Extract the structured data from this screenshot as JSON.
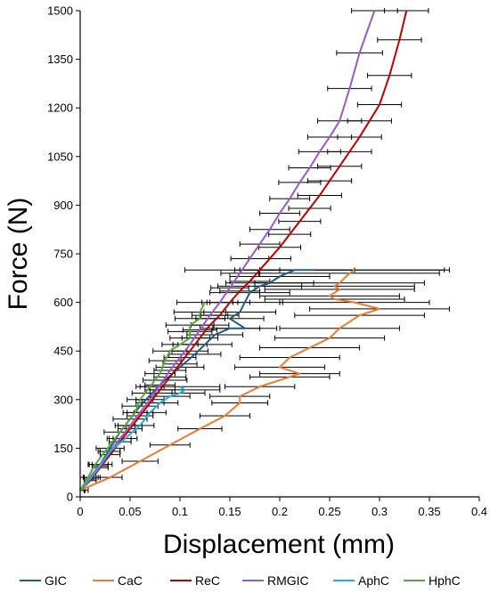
{
  "chart_data": {
    "type": "line",
    "xlabel": "Displacement (mm)",
    "ylabel": "Force (N)",
    "xlim": [
      0,
      0.4
    ],
    "ylim": [
      0,
      1500
    ],
    "xticks": [
      "0",
      "0.05",
      "0.1",
      "0.15",
      "0.2",
      "0.25",
      "0.3",
      "0.35",
      "0.4"
    ],
    "yticks": [
      "0",
      "150",
      "300",
      "450",
      "600",
      "750",
      "900",
      "1050",
      "1200",
      "1350",
      "1500"
    ],
    "grid": false,
    "legend_position": "bottom",
    "error_bars": "horizontal",
    "series": [
      {
        "name": "GIC",
        "color": "#1f5d7a",
        "points": [
          [
            0,
            20
          ],
          [
            0.01,
            60
          ],
          [
            0.02,
            100
          ],
          [
            0.03,
            150
          ],
          [
            0.04,
            200
          ],
          [
            0.05,
            240
          ],
          [
            0.06,
            280
          ],
          [
            0.072,
            320
          ],
          [
            0.085,
            360
          ],
          [
            0.1,
            400
          ],
          [
            0.115,
            440
          ],
          [
            0.125,
            470
          ],
          [
            0.135,
            500
          ],
          [
            0.15,
            520
          ],
          [
            0.165,
            520
          ],
          [
            0.15,
            550
          ],
          [
            0.16,
            570
          ],
          [
            0.165,
            600
          ],
          [
            0.17,
            630
          ],
          [
            0.18,
            650
          ],
          [
            0.19,
            660
          ],
          [
            0.2,
            680
          ],
          [
            0.215,
            700
          ],
          [
            0.235,
            700
          ]
        ],
        "errors": [
          0.008,
          0.01,
          0.012,
          0.014,
          0.016,
          0.017,
          0.018,
          0.02,
          0.022,
          0.024,
          0.026,
          0.027,
          0.028,
          0.03,
          0.032,
          0.034,
          0.036,
          0.038,
          0.04,
          0.042,
          0.044,
          0.05,
          0.06,
          0.13
        ]
      },
      {
        "name": "CaC",
        "color": "#ec7c30",
        "points": [
          [
            0,
            20
          ],
          [
            0.03,
            60
          ],
          [
            0.06,
            110
          ],
          [
            0.09,
            160
          ],
          [
            0.12,
            210
          ],
          [
            0.145,
            250
          ],
          [
            0.16,
            290
          ],
          [
            0.16,
            310
          ],
          [
            0.18,
            340
          ],
          [
            0.21,
            370
          ],
          [
            0.22,
            380
          ],
          [
            0.2,
            400
          ],
          [
            0.21,
            430
          ],
          [
            0.23,
            460
          ],
          [
            0.25,
            490
          ],
          [
            0.26,
            520
          ],
          [
            0.28,
            560
          ],
          [
            0.3,
            580
          ],
          [
            0.275,
            600
          ],
          [
            0.255,
            610
          ],
          [
            0.25,
            620
          ],
          [
            0.26,
            640
          ],
          [
            0.255,
            650
          ],
          [
            0.26,
            660
          ],
          [
            0.27,
            690
          ],
          [
            0.275,
            700
          ]
        ],
        "errors": [
          0.005,
          0.012,
          0.018,
          0.02,
          0.022,
          0.025,
          0.028,
          0.03,
          0.035,
          0.04,
          0.04,
          0.045,
          0.05,
          0.05,
          0.055,
          0.06,
          0.065,
          0.07,
          0.075,
          0.07,
          0.07,
          0.075,
          0.08,
          0.085,
          0.09,
          0.095
        ]
      },
      {
        "name": "ReC",
        "color": "#c00000",
        "points": [
          [
            0,
            20
          ],
          [
            0.01,
            50
          ],
          [
            0.02,
            90
          ],
          [
            0.03,
            130
          ],
          [
            0.04,
            170
          ],
          [
            0.05,
            210
          ],
          [
            0.06,
            250
          ],
          [
            0.07,
            290
          ],
          [
            0.08,
            330
          ],
          [
            0.09,
            370
          ],
          [
            0.1,
            410
          ],
          [
            0.11,
            450
          ],
          [
            0.12,
            490
          ],
          [
            0.13,
            530
          ],
          [
            0.14,
            560
          ],
          [
            0.15,
            600
          ],
          [
            0.16,
            635
          ],
          [
            0.17,
            665
          ],
          [
            0.18,
            700
          ],
          [
            0.19,
            735
          ],
          [
            0.2,
            770
          ],
          [
            0.21,
            810
          ],
          [
            0.22,
            850
          ],
          [
            0.23,
            890
          ],
          [
            0.24,
            930
          ],
          [
            0.25,
            975
          ],
          [
            0.26,
            1020
          ],
          [
            0.27,
            1065
          ],
          [
            0.28,
            1110
          ],
          [
            0.29,
            1160
          ],
          [
            0.3,
            1210
          ],
          [
            0.31,
            1300
          ],
          [
            0.32,
            1410
          ],
          [
            0.327,
            1500
          ]
        ],
        "errors": [
          0.004,
          0.006,
          0.008,
          0.01,
          0.011,
          0.012,
          0.013,
          0.014,
          0.015,
          0.016,
          0.017,
          0.018,
          0.018,
          0.019,
          0.019,
          0.02,
          0.02,
          0.02,
          0.02,
          0.021,
          0.021,
          0.021,
          0.021,
          0.021,
          0.022,
          0.022,
          0.022,
          0.022,
          0.022,
          0.022,
          0.022,
          0.022,
          0.022,
          0.022
        ]
      },
      {
        "name": "RMGIC",
        "color": "#9b59c8",
        "points": [
          [
            0,
            20
          ],
          [
            0.01,
            60
          ],
          [
            0.02,
            100
          ],
          [
            0.03,
            140
          ],
          [
            0.04,
            180
          ],
          [
            0.05,
            220
          ],
          [
            0.06,
            260
          ],
          [
            0.07,
            300
          ],
          [
            0.08,
            345
          ],
          [
            0.09,
            390
          ],
          [
            0.1,
            430
          ],
          [
            0.11,
            470
          ],
          [
            0.12,
            515
          ],
          [
            0.13,
            560
          ],
          [
            0.14,
            600
          ],
          [
            0.15,
            645
          ],
          [
            0.16,
            690
          ],
          [
            0.17,
            735
          ],
          [
            0.18,
            780
          ],
          [
            0.19,
            825
          ],
          [
            0.2,
            875
          ],
          [
            0.21,
            920
          ],
          [
            0.22,
            970
          ],
          [
            0.23,
            1015
          ],
          [
            0.24,
            1065
          ],
          [
            0.25,
            1110
          ],
          [
            0.26,
            1160
          ],
          [
            0.27,
            1260
          ],
          [
            0.28,
            1370
          ],
          [
            0.295,
            1500
          ]
        ],
        "errors": [
          0.004,
          0.006,
          0.008,
          0.01,
          0.011,
          0.012,
          0.013,
          0.014,
          0.015,
          0.016,
          0.016,
          0.017,
          0.017,
          0.018,
          0.018,
          0.019,
          0.019,
          0.019,
          0.02,
          0.02,
          0.02,
          0.02,
          0.021,
          0.021,
          0.021,
          0.022,
          0.022,
          0.022,
          0.023,
          0.023
        ]
      },
      {
        "name": "AphC",
        "color": "#1ab0e0",
        "points": [
          [
            0,
            20
          ],
          [
            0.01,
            55
          ],
          [
            0.02,
            95
          ],
          [
            0.03,
            140
          ],
          [
            0.045,
            180
          ],
          [
            0.06,
            220
          ],
          [
            0.07,
            260
          ],
          [
            0.08,
            290
          ],
          [
            0.09,
            310
          ],
          [
            0.1,
            320
          ],
          [
            0.105,
            330
          ],
          [
            0.1,
            340
          ]
        ],
        "errors": [
          0.004,
          0.006,
          0.008,
          0.01,
          0.012,
          0.014,
          0.016,
          0.018,
          0.02,
          0.025,
          0.035,
          0.04
        ]
      },
      {
        "name": "HphC",
        "color": "#5aa83a",
        "points": [
          [
            0,
            20
          ],
          [
            0.008,
            60
          ],
          [
            0.015,
            100
          ],
          [
            0.025,
            140
          ],
          [
            0.035,
            180
          ],
          [
            0.045,
            220
          ],
          [
            0.055,
            260
          ],
          [
            0.06,
            300
          ],
          [
            0.07,
            340
          ],
          [
            0.08,
            380
          ],
          [
            0.085,
            420
          ],
          [
            0.09,
            450
          ],
          [
            0.1,
            470
          ],
          [
            0.11,
            490
          ],
          [
            0.11,
            510
          ],
          [
            0.11,
            530
          ],
          [
            0.12,
            550
          ],
          [
            0.12,
            570
          ],
          [
            0.125,
            600
          ]
        ],
        "errors": [
          0.004,
          0.005,
          0.006,
          0.007,
          0.008,
          0.01,
          0.012,
          0.013,
          0.014,
          0.015,
          0.016,
          0.017,
          0.018,
          0.02,
          0.022,
          0.024,
          0.025,
          0.026,
          0.028
        ]
      }
    ]
  }
}
